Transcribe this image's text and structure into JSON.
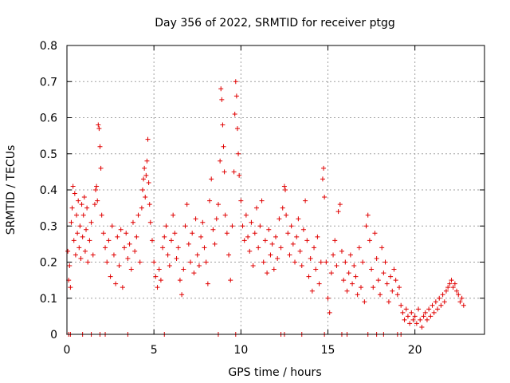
{
  "chart_data": {
    "type": "scatter",
    "title": "Day 356 of 2022, SRMTID for receiver ptgg",
    "xlabel": "GPS time / hours",
    "ylabel": "SRMTID / TECUs",
    "xlim": [
      0,
      24
    ],
    "ylim": [
      0,
      0.8
    ],
    "xticks": [
      0,
      5,
      10,
      15,
      20
    ],
    "xtick_labels": [
      "0",
      "5",
      "10",
      "15",
      "20"
    ],
    "yticks": [
      0,
      0.1,
      0.2,
      0.3,
      0.4,
      0.5,
      0.6,
      0.7,
      0.8
    ],
    "ytick_labels": [
      "0",
      "0.1",
      "0.2",
      "0.3",
      "0.4",
      "0.5",
      "0.6",
      "0.7",
      "0.8"
    ],
    "grid": true,
    "marker": "+",
    "color": "#e00000",
    "series": [
      {
        "name": "SRMTID",
        "points": [
          [
            0.05,
            0.23
          ],
          [
            0.1,
            0.15
          ],
          [
            0.15,
            0.19
          ],
          [
            0.2,
            0.13
          ],
          [
            0.25,
            0.31
          ],
          [
            0.3,
            0.35
          ],
          [
            0.35,
            0.41
          ],
          [
            0.4,
            0.26
          ],
          [
            0.45,
            0.39
          ],
          [
            0.5,
            0.22
          ],
          [
            0.55,
            0.33
          ],
          [
            0.6,
            0.28
          ],
          [
            0.65,
            0.37
          ],
          [
            0.7,
            0.24
          ],
          [
            0.75,
            0.3
          ],
          [
            0.8,
            0.21
          ],
          [
            0.85,
            0.36
          ],
          [
            0.9,
            0.27
          ],
          [
            0.95,
            0.33
          ],
          [
            1.0,
            0.38
          ],
          [
            1.05,
            0.23
          ],
          [
            1.1,
            0.29
          ],
          [
            1.15,
            0.35
          ],
          [
            1.2,
            0.2
          ],
          [
            1.3,
            0.26
          ],
          [
            1.4,
            0.31
          ],
          [
            1.5,
            0.22
          ],
          [
            1.6,
            0.36
          ],
          [
            1.65,
            0.4
          ],
          [
            1.7,
            0.41
          ],
          [
            1.75,
            0.37
          ],
          [
            1.8,
            0.58
          ],
          [
            1.85,
            0.57
          ],
          [
            1.9,
            0.52
          ],
          [
            1.95,
            0.46
          ],
          [
            2.0,
            0.33
          ],
          [
            2.1,
            0.28
          ],
          [
            2.2,
            0.24
          ],
          [
            2.3,
            0.2
          ],
          [
            2.4,
            0.26
          ],
          [
            2.5,
            0.16
          ],
          [
            2.6,
            0.3
          ],
          [
            2.7,
            0.22
          ],
          [
            2.8,
            0.14
          ],
          [
            2.9,
            0.27
          ],
          [
            3.0,
            0.19
          ],
          [
            3.1,
            0.29
          ],
          [
            3.2,
            0.13
          ],
          [
            3.3,
            0.24
          ],
          [
            3.4,
            0.28
          ],
          [
            3.5,
            0.21
          ],
          [
            3.6,
            0.25
          ],
          [
            3.7,
            0.18
          ],
          [
            3.8,
            0.31
          ],
          [
            3.9,
            0.23
          ],
          [
            4.0,
            0.27
          ],
          [
            4.1,
            0.33
          ],
          [
            4.2,
            0.2
          ],
          [
            4.3,
            0.35
          ],
          [
            4.35,
            0.4
          ],
          [
            4.4,
            0.43
          ],
          [
            4.45,
            0.46
          ],
          [
            4.5,
            0.38
          ],
          [
            4.55,
            0.44
          ],
          [
            4.6,
            0.48
          ],
          [
            4.65,
            0.54
          ],
          [
            4.7,
            0.42
          ],
          [
            4.75,
            0.36
          ],
          [
            4.8,
            0.31
          ],
          [
            4.9,
            0.26
          ],
          [
            5.0,
            0.2
          ],
          [
            5.1,
            0.16
          ],
          [
            5.2,
            0.13
          ],
          [
            5.3,
            0.18
          ],
          [
            5.4,
            0.15
          ],
          [
            5.5,
            0.24
          ],
          [
            5.6,
            0.27
          ],
          [
            5.7,
            0.3
          ],
          [
            5.8,
            0.22
          ],
          [
            5.9,
            0.19
          ],
          [
            6.0,
            0.26
          ],
          [
            6.1,
            0.33
          ],
          [
            6.2,
            0.28
          ],
          [
            6.3,
            0.21
          ],
          [
            6.4,
            0.24
          ],
          [
            6.5,
            0.15
          ],
          [
            6.6,
            0.11
          ],
          [
            6.7,
            0.18
          ],
          [
            6.8,
            0.3
          ],
          [
            6.9,
            0.36
          ],
          [
            7.0,
            0.25
          ],
          [
            7.1,
            0.2
          ],
          [
            7.2,
            0.28
          ],
          [
            7.3,
            0.17
          ],
          [
            7.4,
            0.32
          ],
          [
            7.5,
            0.22
          ],
          [
            7.6,
            0.19
          ],
          [
            7.7,
            0.27
          ],
          [
            7.8,
            0.31
          ],
          [
            7.9,
            0.24
          ],
          [
            8.0,
            0.2
          ],
          [
            8.1,
            0.14
          ],
          [
            8.2,
            0.37
          ],
          [
            8.3,
            0.43
          ],
          [
            8.4,
            0.29
          ],
          [
            8.5,
            0.25
          ],
          [
            8.6,
            0.32
          ],
          [
            8.7,
            0.36
          ],
          [
            8.8,
            0.48
          ],
          [
            8.85,
            0.68
          ],
          [
            8.9,
            0.65
          ],
          [
            8.95,
            0.58
          ],
          [
            9.0,
            0.52
          ],
          [
            9.05,
            0.45
          ],
          [
            9.1,
            0.33
          ],
          [
            9.2,
            0.28
          ],
          [
            9.3,
            0.22
          ],
          [
            9.4,
            0.15
          ],
          [
            9.5,
            0.3
          ],
          [
            9.6,
            0.45
          ],
          [
            9.65,
            0.61
          ],
          [
            9.7,
            0.7
          ],
          [
            9.75,
            0.66
          ],
          [
            9.8,
            0.57
          ],
          [
            9.85,
            0.5
          ],
          [
            9.9,
            0.44
          ],
          [
            10.0,
            0.37
          ],
          [
            10.1,
            0.3
          ],
          [
            10.2,
            0.26
          ],
          [
            10.3,
            0.33
          ],
          [
            10.4,
            0.27
          ],
          [
            10.5,
            0.23
          ],
          [
            10.6,
            0.31
          ],
          [
            10.7,
            0.19
          ],
          [
            10.8,
            0.28
          ],
          [
            10.9,
            0.35
          ],
          [
            11.0,
            0.24
          ],
          [
            11.1,
            0.3
          ],
          [
            11.2,
            0.37
          ],
          [
            11.3,
            0.2
          ],
          [
            11.4,
            0.26
          ],
          [
            11.5,
            0.17
          ],
          [
            11.6,
            0.29
          ],
          [
            11.7,
            0.22
          ],
          [
            11.8,
            0.25
          ],
          [
            11.9,
            0.18
          ],
          [
            12.0,
            0.27
          ],
          [
            12.1,
            0.21
          ],
          [
            12.2,
            0.32
          ],
          [
            12.3,
            0.24
          ],
          [
            12.4,
            0.35
          ],
          [
            12.5,
            0.41
          ],
          [
            12.55,
            0.4
          ],
          [
            12.6,
            0.33
          ],
          [
            12.7,
            0.28
          ],
          [
            12.8,
            0.22
          ],
          [
            12.9,
            0.3
          ],
          [
            13.0,
            0.25
          ],
          [
            13.1,
            0.2
          ],
          [
            13.2,
            0.27
          ],
          [
            13.3,
            0.32
          ],
          [
            13.4,
            0.23
          ],
          [
            13.5,
            0.19
          ],
          [
            13.6,
            0.29
          ],
          [
            13.7,
            0.37
          ],
          [
            13.8,
            0.26
          ],
          [
            13.9,
            0.16
          ],
          [
            14.0,
            0.21
          ],
          [
            14.1,
            0.12
          ],
          [
            14.2,
            0.24
          ],
          [
            14.3,
            0.18
          ],
          [
            14.4,
            0.27
          ],
          [
            14.5,
            0.14
          ],
          [
            14.6,
            0.2
          ],
          [
            14.7,
            0.43
          ],
          [
            14.75,
            0.46
          ],
          [
            14.8,
            0.38
          ],
          [
            14.9,
            0.2
          ],
          [
            15.0,
            0.1
          ],
          [
            15.1,
            0.06
          ],
          [
            15.2,
            0.17
          ],
          [
            15.3,
            0.22
          ],
          [
            15.4,
            0.26
          ],
          [
            15.5,
            0.19
          ],
          [
            15.6,
            0.34
          ],
          [
            15.7,
            0.36
          ],
          [
            15.8,
            0.23
          ],
          [
            15.9,
            0.15
          ],
          [
            16.0,
            0.2
          ],
          [
            16.1,
            0.12
          ],
          [
            16.2,
            0.17
          ],
          [
            16.3,
            0.22
          ],
          [
            16.4,
            0.14
          ],
          [
            16.5,
            0.19
          ],
          [
            16.6,
            0.16
          ],
          [
            16.7,
            0.11
          ],
          [
            16.8,
            0.24
          ],
          [
            16.9,
            0.13
          ],
          [
            17.0,
            0.2
          ],
          [
            17.1,
            0.09
          ],
          [
            17.2,
            0.3
          ],
          [
            17.3,
            0.33
          ],
          [
            17.4,
            0.26
          ],
          [
            17.5,
            0.18
          ],
          [
            17.6,
            0.13
          ],
          [
            17.7,
            0.28
          ],
          [
            17.8,
            0.21
          ],
          [
            17.9,
            0.15
          ],
          [
            18.0,
            0.11
          ],
          [
            18.1,
            0.24
          ],
          [
            18.2,
            0.17
          ],
          [
            18.3,
            0.2
          ],
          [
            18.4,
            0.14
          ],
          [
            18.5,
            0.09
          ],
          [
            18.6,
            0.16
          ],
          [
            18.7,
            0.12
          ],
          [
            18.8,
            0.18
          ],
          [
            18.9,
            0.15
          ],
          [
            19.0,
            0.11
          ],
          [
            19.1,
            0.13
          ],
          [
            19.2,
            0.08
          ],
          [
            19.3,
            0.06
          ],
          [
            19.4,
            0.04
          ],
          [
            19.5,
            0.07
          ],
          [
            19.6,
            0.05
          ],
          [
            19.7,
            0.03
          ],
          [
            19.8,
            0.06
          ],
          [
            19.9,
            0.04
          ],
          [
            20.0,
            0.05
          ],
          [
            20.1,
            0.03
          ],
          [
            20.2,
            0.07
          ],
          [
            20.3,
            0.04
          ],
          [
            20.4,
            0.02
          ],
          [
            20.5,
            0.05
          ],
          [
            20.6,
            0.06
          ],
          [
            20.7,
            0.04
          ],
          [
            20.8,
            0.07
          ],
          [
            20.9,
            0.05
          ],
          [
            21.0,
            0.08
          ],
          [
            21.1,
            0.06
          ],
          [
            21.2,
            0.09
          ],
          [
            21.3,
            0.07
          ],
          [
            21.4,
            0.1
          ],
          [
            21.5,
            0.08
          ],
          [
            21.6,
            0.11
          ],
          [
            21.7,
            0.09
          ],
          [
            21.8,
            0.12
          ],
          [
            21.9,
            0.13
          ],
          [
            22.0,
            0.14
          ],
          [
            22.1,
            0.15
          ],
          [
            22.2,
            0.13
          ],
          [
            22.3,
            0.14
          ],
          [
            22.4,
            0.12
          ],
          [
            22.5,
            0.11
          ],
          [
            22.6,
            0.09
          ],
          [
            22.7,
            0.1
          ],
          [
            22.8,
            0.08
          ]
        ],
        "zero_points_x": [
          0.1,
          0.2,
          0.9,
          1.4,
          1.9,
          2.2,
          3.5,
          5.6,
          8.7,
          9.7,
          12.3,
          12.5,
          13.5,
          14.8,
          15.8,
          16.1,
          17.3,
          17.8,
          18.2,
          19.0,
          19.2
        ]
      }
    ]
  }
}
